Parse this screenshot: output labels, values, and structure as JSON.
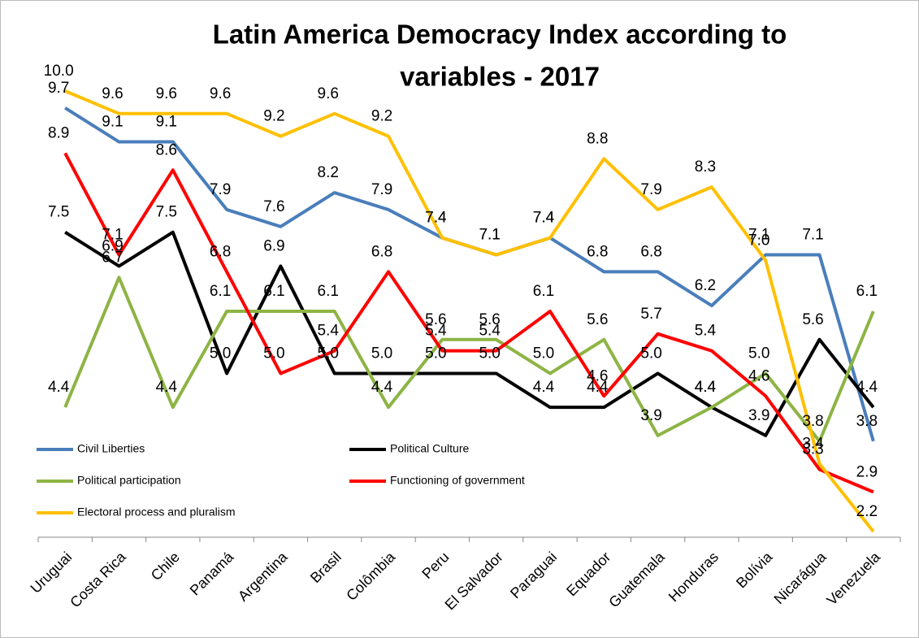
{
  "chart_data": {
    "type": "line",
    "title": [
      "Latin America Democracy Index according to",
      "variables - 2017"
    ],
    "categories": [
      "Uruguai",
      "Costa Rica",
      "Chile",
      "Panamá",
      "Argentina",
      "Brasil",
      "Colômbia",
      "Peru",
      "El Salvador",
      "Paraguai",
      "Equador",
      "Guatemala",
      "Honduras",
      "Bolívia",
      "Nicarágua",
      "Venezuela"
    ],
    "series": [
      {
        "name": "Civil Liberties",
        "color": "#4a7ebb",
        "values": [
          9.7,
          9.1,
          9.1,
          7.9,
          7.6,
          8.2,
          7.9,
          7.4,
          7.1,
          7.4,
          6.8,
          6.8,
          6.2,
          7.1,
          7.1,
          3.8
        ],
        "value_labels": [
          "9.7",
          "9.1",
          "9.1",
          "7.9",
          "7.6",
          "8.2",
          "7.9",
          "7.4",
          "7.1",
          "7.4",
          "6.8",
          "6.8",
          "6.2",
          "7.1",
          "7.1",
          "3.8"
        ]
      },
      {
        "name": "Political Culture",
        "color": "#000000",
        "values": [
          7.5,
          6.9,
          7.5,
          5.0,
          6.9,
          5.0,
          5.0,
          5.0,
          5.0,
          4.4,
          4.4,
          5.0,
          4.4,
          3.9,
          5.6,
          4.4
        ],
        "value_labels": [
          "7.5",
          "6.9",
          "7.5",
          "5.0",
          "6.9",
          "5.0",
          "5.0",
          "5.0",
          "5.0",
          "4.4",
          "4.4",
          "5.0",
          "4.4",
          "3.9",
          "5.6",
          "4.4"
        ]
      },
      {
        "name": "Political participation",
        "color": "#8db444",
        "values": [
          4.4,
          6.7,
          4.4,
          6.1,
          6.1,
          6.1,
          4.4,
          5.6,
          5.6,
          5.0,
          5.6,
          3.9,
          4.4,
          5.0,
          3.8,
          6.1
        ],
        "value_labels": [
          "4.4",
          "6.7",
          "4.4",
          "6.1",
          "6.1",
          "6.1",
          "4.4",
          "5.6",
          "5.6",
          "5.0",
          "5.6",
          "3.9",
          "4.4",
          "5.0",
          "3.8",
          "6.1"
        ]
      },
      {
        "name": "Functioning of government",
        "color": "#ff0000",
        "values": [
          8.9,
          7.1,
          8.6,
          6.8,
          5.0,
          5.4,
          6.8,
          5.4,
          5.4,
          6.1,
          4.6,
          5.7,
          5.4,
          4.6,
          3.3,
          2.9
        ],
        "value_labels": [
          "8.9",
          "7.1",
          "8.6",
          "6.8",
          "5.0",
          "5.4",
          "6.8",
          "5.4",
          "5.4",
          "6.1",
          "4.6",
          "5.7",
          "5.4",
          "4.6",
          "3.3",
          "2.9"
        ]
      },
      {
        "name": "Electoral process and pluralism",
        "color": "#ffc000",
        "values": [
          10.0,
          9.6,
          9.6,
          9.6,
          9.2,
          9.6,
          9.2,
          7.4,
          7.1,
          7.4,
          8.8,
          7.9,
          8.3,
          7.0,
          3.4,
          2.2
        ],
        "value_labels": [
          "10.0",
          "9.6",
          "9.6",
          "9.6",
          "9.2",
          "9.6",
          "9.2",
          "7.4",
          "7.1",
          "7.4",
          "8.8",
          "7.9",
          "8.3",
          "7.0",
          "3.4",
          "2.2"
        ]
      }
    ],
    "ylim": [
      2.1,
      10
    ],
    "grid": false
  }
}
